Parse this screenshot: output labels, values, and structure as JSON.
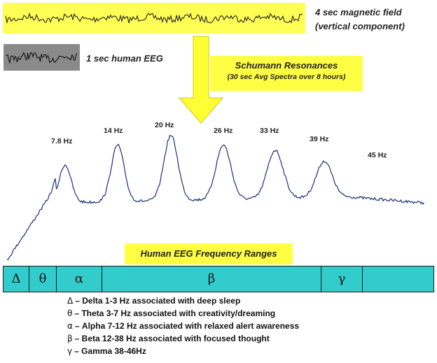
{
  "magnetic_label_line1": "4 sec magnetic field",
  "magnetic_label_line2": "(vertical component)",
  "eeg_label": "1 sec human EEG",
  "schumann": {
    "title": "Schumann Resonances",
    "subtitle": "(30 sec Avg Spectra over 8 hours)"
  },
  "peaks": [
    "7.8 Hz",
    "14 Hz",
    "20 Hz",
    "26 Hz",
    "33 Hz",
    "39 Hz",
    "45 Hz"
  ],
  "ranges_title": "Human EEG Frequency Ranges",
  "bands": [
    "Δ",
    "θ",
    "α",
    "β",
    "γ"
  ],
  "legend": [
    {
      "symbol": "Δ",
      "text": "– Delta 1-3 Hz associated with deep sleep"
    },
    {
      "symbol": "θ",
      "text": "– Theta 3-7 Hz associated with creativity/dreaming"
    },
    {
      "symbol": "α",
      "text": "– Alpha 7-12 Hz associated with relaxed alert awareness"
    },
    {
      "symbol": "β",
      "text": "– Beta 12-38 Hz associated with focused thought"
    },
    {
      "symbol": "γ",
      "text": "– Gamma 38-46Hz"
    }
  ],
  "colors": {
    "yellow": "#ffff44",
    "band": "#33cccc",
    "trace": "#1f2f7a"
  }
}
